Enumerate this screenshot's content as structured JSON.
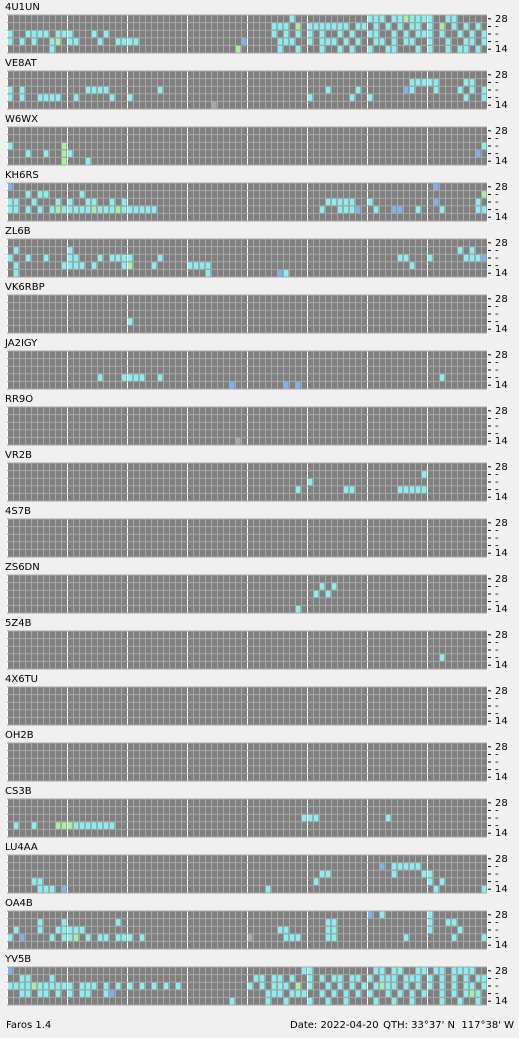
{
  "app": {
    "name": "Faros 1.4",
    "date": "Date: 2022-04-20",
    "qth": "QTH: 33°37' N  117°38' W"
  },
  "grid": {
    "columns": 80,
    "major_every": 10,
    "row_labels": [
      "28",
      "-",
      "-",
      "-",
      "14"
    ],
    "level_colors": {
      "0": "#a8a8a8",
      "1": "#80b0f0",
      "2": "#88eef0",
      "3": "#a8f0a0"
    }
  },
  "stations": [
    {
      "name": "4U1UN",
      "rows": [
        [
          47,
          60,
          61,
          62,
          64,
          65,
          67,
          68,
          69,
          70,
          73,
          74
        ],
        [
          44,
          45,
          46,
          50,
          51,
          52,
          53,
          54,
          55,
          56,
          58,
          59,
          61,
          63,
          65,
          67,
          68,
          70,
          74,
          76,
          78
        ],
        [
          0,
          3,
          4,
          5,
          6,
          8,
          9,
          10,
          14,
          16,
          44,
          46,
          48,
          50,
          52,
          55,
          57,
          60,
          61,
          64,
          66,
          68,
          69,
          70,
          72,
          75,
          77,
          79
        ],
        [
          0,
          2,
          4,
          7,
          10,
          11,
          15,
          18,
          19,
          20,
          21,
          45,
          46,
          47,
          50,
          52,
          53,
          54,
          56,
          58,
          61,
          62,
          64,
          66,
          67,
          70,
          73,
          76,
          77,
          79
        ],
        [
          7,
          45,
          48,
          52,
          55,
          57,
          60,
          63,
          64,
          68,
          70,
          73,
          75,
          76,
          78
        ]
      ],
      "other": [
        [
          66,
          0,
          3
        ],
        [
          72,
          1,
          3
        ],
        [
          8,
          3,
          3
        ],
        [
          48,
          1,
          3
        ],
        [
          39,
          3,
          1
        ],
        [
          38,
          4,
          3
        ]
      ]
    },
    {
      "name": "VE8AT",
      "rows": [
        [],
        [
          67,
          68,
          69,
          70,
          71,
          76,
          77
        ],
        [
          0,
          2,
          13,
          14,
          15,
          16,
          25,
          53,
          58,
          66,
          67,
          71,
          75,
          77,
          79
        ],
        [
          0,
          2,
          5,
          6,
          7,
          8,
          11,
          17,
          20,
          50,
          57,
          60,
          76,
          79
        ],
        []
      ],
      "other": [
        [
          34,
          4,
          0
        ],
        [
          66,
          2,
          1
        ]
      ]
    },
    {
      "name": "W6WX",
      "rows": [
        [],
        [],
        [
          0,
          79
        ],
        [
          3,
          6,
          10
        ],
        [
          13
        ]
      ],
      "other": [
        [
          9,
          2,
          3
        ],
        [
          9,
          3,
          3
        ],
        [
          9,
          4,
          3
        ],
        [
          78,
          3,
          1
        ]
      ]
    },
    {
      "name": "KH6RS",
      "rows": [
        [],
        [
          3,
          5,
          6,
          12
        ],
        [
          0,
          1,
          4,
          8,
          10,
          13,
          14,
          17,
          19,
          53,
          54,
          55,
          56,
          57,
          60,
          78
        ],
        [
          0,
          1,
          3,
          5,
          7,
          9,
          10,
          11,
          12,
          13,
          15,
          16,
          17,
          19,
          20,
          21,
          22,
          23,
          24,
          52,
          55,
          56,
          57,
          61,
          68,
          72,
          78,
          79
        ],
        []
      ],
      "other": [
        [
          0,
          0,
          1
        ],
        [
          71,
          0,
          1
        ],
        [
          79,
          1,
          3
        ],
        [
          8,
          3,
          3
        ],
        [
          14,
          3,
          3
        ],
        [
          18,
          3,
          3
        ],
        [
          58,
          3,
          1
        ],
        [
          64,
          3,
          1
        ],
        [
          65,
          3,
          1
        ],
        [
          71,
          2,
          1
        ]
      ]
    },
    {
      "name": "ZL6B",
      "rows": [
        [],
        [
          1,
          10,
          75,
          77
        ],
        [
          0,
          3,
          6,
          10,
          11,
          15,
          17,
          18,
          19,
          20,
          25,
          65,
          66,
          70,
          76,
          77,
          78
        ],
        [
          1,
          9,
          10,
          11,
          12,
          14,
          19,
          24,
          30,
          31,
          32,
          33,
          67
        ],
        [
          1,
          33,
          46
        ]
      ],
      "other": [
        [
          20,
          3,
          3
        ],
        [
          45,
          4,
          1
        ],
        [
          79,
          2,
          1
        ]
      ]
    },
    {
      "name": "VK6RBP",
      "rows": [
        [],
        [],
        [],
        [
          20
        ],
        []
      ],
      "other": []
    },
    {
      "name": "JA2IGY",
      "rows": [
        [],
        [],
        [],
        [
          15,
          19,
          20,
          21,
          22,
          25,
          72
        ],
        []
      ],
      "other": [
        [
          37,
          4,
          1
        ],
        [
          46,
          4,
          1
        ],
        [
          48,
          4,
          1
        ]
      ]
    },
    {
      "name": "RR9O",
      "rows": [
        [],
        [],
        [],
        [],
        []
      ],
      "other": [
        [
          38,
          4,
          0
        ]
      ]
    },
    {
      "name": "VR2B",
      "rows": [
        [],
        [
          69
        ],
        [
          50
        ],
        [
          48,
          56,
          57,
          65,
          66,
          67,
          68,
          69
        ],
        []
      ],
      "other": []
    },
    {
      "name": "4S7B",
      "rows": [
        [],
        [],
        [],
        [],
        []
      ],
      "other": []
    },
    {
      "name": "ZS6DN",
      "rows": [
        [],
        [
          52,
          54
        ],
        [
          51,
          53
        ],
        [],
        [
          48
        ]
      ],
      "other": []
    },
    {
      "name": "5Z4B",
      "rows": [
        [],
        [],
        [],
        [
          72
        ],
        []
      ],
      "other": []
    },
    {
      "name": "4X6TU",
      "rows": [
        [],
        [],
        [],
        [],
        []
      ],
      "other": []
    },
    {
      "name": "OH2B",
      "rows": [
        [],
        [],
        [],
        [],
        []
      ],
      "other": []
    },
    {
      "name": "CS3B",
      "rows": [
        [],
        [],
        [
          49,
          50,
          51,
          63
        ],
        [
          1,
          4,
          11,
          12,
          13,
          14,
          15,
          16,
          17
        ],
        []
      ],
      "other": [
        [
          8,
          3,
          3
        ],
        [
          9,
          3,
          3
        ],
        [
          10,
          3,
          3
        ]
      ]
    },
    {
      "name": "LU4AA",
      "rows": [
        [],
        [
          64,
          65,
          66,
          67,
          68
        ],
        [
          52,
          53,
          64,
          69,
          70
        ],
        [
          4,
          5,
          51,
          70,
          72
        ],
        [
          5,
          6,
          7,
          43,
          71,
          79
        ]
      ],
      "other": [
        [
          62,
          1,
          1
        ],
        [
          9,
          4,
          1
        ]
      ]
    },
    {
      "name": "OA4B",
      "rows": [
        [
          62,
          70
        ],
        [
          5,
          9,
          18,
          53,
          54,
          70,
          73,
          74
        ],
        [
          1,
          5,
          8,
          9,
          10,
          11,
          12,
          45,
          46,
          53,
          54,
          70,
          75
        ],
        [
          0,
          7,
          9,
          10,
          13,
          15,
          16,
          18,
          19,
          20,
          22,
          46,
          47,
          48,
          53,
          54,
          66,
          74,
          79
        ],
        []
      ],
      "other": [
        [
          60,
          0,
          1
        ],
        [
          2,
          3,
          1
        ],
        [
          11,
          3,
          3
        ],
        [
          40,
          3,
          0
        ]
      ]
    },
    {
      "name": "YV5B",
      "rows": [
        [
          49,
          50,
          61,
          62,
          64,
          65,
          68,
          69,
          71,
          72,
          74,
          75,
          76,
          77
        ],
        [
          2,
          3,
          7,
          41,
          42,
          44,
          45,
          47,
          50,
          52,
          54,
          55,
          57,
          58,
          60,
          62,
          63,
          64,
          66,
          67,
          68,
          70,
          72,
          74,
          76,
          78,
          79
        ],
        [
          0,
          1,
          2,
          3,
          5,
          6,
          7,
          8,
          9,
          10,
          12,
          13,
          14,
          16,
          18,
          20,
          22,
          24,
          26,
          28,
          40,
          42,
          44,
          45,
          46,
          50,
          53,
          55,
          57,
          59,
          61,
          63,
          64,
          66,
          68,
          70,
          72,
          74,
          76,
          77,
          79
        ],
        [
          2,
          3,
          5,
          6,
          8,
          10,
          12,
          13,
          16,
          43,
          44,
          45,
          47,
          48,
          49,
          52,
          54,
          56,
          58,
          60,
          63,
          65,
          67,
          69,
          72,
          74,
          76,
          78
        ],
        [
          37,
          43,
          46,
          50,
          53,
          56,
          61,
          64,
          67,
          72,
          75,
          78
        ]
      ],
      "other": [
        [
          0,
          0,
          1
        ],
        [
          4,
          2,
          3
        ],
        [
          48,
          2,
          3
        ],
        [
          62,
          2,
          3
        ],
        [
          77,
          3,
          3
        ],
        [
          17,
          3,
          1
        ]
      ]
    }
  ]
}
